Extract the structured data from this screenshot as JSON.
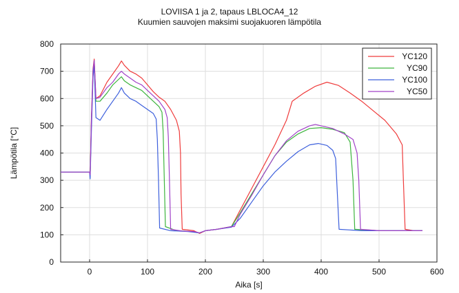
{
  "chart_data": {
    "type": "line",
    "title": "LOVIISA 1 ja 2, tapaus LBLOCA4_12",
    "subtitle": "Kuumien sauvojen maksimi suojakuoren lämpötila",
    "xlabel": "Aika [s]",
    "ylabel": "Lämpötila [°C]",
    "xlim": [
      -50,
      600
    ],
    "ylim": [
      0,
      800
    ],
    "xticks": [
      0,
      100,
      200,
      300,
      400,
      500,
      600
    ],
    "yticks": [
      0,
      100,
      200,
      300,
      400,
      500,
      600,
      700,
      800
    ],
    "grid": true,
    "legend_position": "top-right",
    "series": [
      {
        "name": "YC120",
        "color": "#ef3b3b",
        "points": [
          [
            -50,
            330
          ],
          [
            0,
            330
          ],
          [
            1,
            320
          ],
          [
            3,
            520
          ],
          [
            6,
            710
          ],
          [
            8,
            745
          ],
          [
            11,
            600
          ],
          [
            18,
            610
          ],
          [
            30,
            660
          ],
          [
            40,
            690
          ],
          [
            50,
            720
          ],
          [
            55,
            738
          ],
          [
            60,
            722
          ],
          [
            70,
            700
          ],
          [
            80,
            690
          ],
          [
            90,
            675
          ],
          [
            100,
            650
          ],
          [
            110,
            625
          ],
          [
            120,
            605
          ],
          [
            130,
            590
          ],
          [
            140,
            560
          ],
          [
            150,
            520
          ],
          [
            155,
            480
          ],
          [
            157,
            400
          ],
          [
            158,
            250
          ],
          [
            160,
            120
          ],
          [
            180,
            115
          ],
          [
            190,
            105
          ],
          [
            200,
            115
          ],
          [
            220,
            120
          ],
          [
            245,
            130
          ],
          [
            260,
            190
          ],
          [
            280,
            270
          ],
          [
            300,
            350
          ],
          [
            320,
            430
          ],
          [
            340,
            520
          ],
          [
            350,
            590
          ],
          [
            370,
            620
          ],
          [
            390,
            645
          ],
          [
            410,
            660
          ],
          [
            430,
            648
          ],
          [
            450,
            620
          ],
          [
            470,
            590
          ],
          [
            490,
            555
          ],
          [
            510,
            520
          ],
          [
            530,
            470
          ],
          [
            540,
            430
          ],
          [
            542,
            300
          ],
          [
            545,
            120
          ],
          [
            560,
            115
          ],
          [
            575,
            115
          ]
        ]
      },
      {
        "name": "YC90",
        "color": "#3cb43c",
        "points": [
          [
            -50,
            330
          ],
          [
            0,
            330
          ],
          [
            1,
            320
          ],
          [
            3,
            500
          ],
          [
            6,
            700
          ],
          [
            8,
            735
          ],
          [
            11,
            590
          ],
          [
            18,
            590
          ],
          [
            30,
            620
          ],
          [
            40,
            650
          ],
          [
            50,
            670
          ],
          [
            55,
            680
          ],
          [
            60,
            665
          ],
          [
            70,
            650
          ],
          [
            80,
            640
          ],
          [
            90,
            630
          ],
          [
            100,
            610
          ],
          [
            110,
            590
          ],
          [
            120,
            570
          ],
          [
            125,
            550
          ],
          [
            127,
            480
          ],
          [
            129,
            300
          ],
          [
            131,
            130
          ],
          [
            150,
            115
          ],
          [
            170,
            113
          ],
          [
            190,
            107
          ],
          [
            200,
            115
          ],
          [
            220,
            120
          ],
          [
            245,
            130
          ],
          [
            260,
            180
          ],
          [
            280,
            250
          ],
          [
            300,
            320
          ],
          [
            320,
            390
          ],
          [
            340,
            440
          ],
          [
            360,
            470
          ],
          [
            380,
            490
          ],
          [
            400,
            493
          ],
          [
            420,
            487
          ],
          [
            440,
            475
          ],
          [
            450,
            440
          ],
          [
            455,
            300
          ],
          [
            458,
            120
          ],
          [
            500,
            115
          ],
          [
            575,
            115
          ]
        ]
      },
      {
        "name": "YC100",
        "color": "#3c5fdc",
        "points": [
          [
            -50,
            330
          ],
          [
            0,
            330
          ],
          [
            1,
            305
          ],
          [
            3,
            470
          ],
          [
            6,
            680
          ],
          [
            8,
            720
          ],
          [
            11,
            530
          ],
          [
            18,
            520
          ],
          [
            30,
            560
          ],
          [
            40,
            590
          ],
          [
            50,
            620
          ],
          [
            55,
            640
          ],
          [
            60,
            620
          ],
          [
            70,
            600
          ],
          [
            80,
            590
          ],
          [
            90,
            575
          ],
          [
            100,
            560
          ],
          [
            110,
            545
          ],
          [
            115,
            525
          ],
          [
            117,
            450
          ],
          [
            119,
            300
          ],
          [
            121,
            125
          ],
          [
            140,
            115
          ],
          [
            170,
            112
          ],
          [
            190,
            107
          ],
          [
            200,
            115
          ],
          [
            220,
            120
          ],
          [
            245,
            128
          ],
          [
            260,
            160
          ],
          [
            280,
            220
          ],
          [
            300,
            280
          ],
          [
            320,
            330
          ],
          [
            340,
            370
          ],
          [
            360,
            405
          ],
          [
            380,
            430
          ],
          [
            395,
            435
          ],
          [
            410,
            428
          ],
          [
            420,
            410
          ],
          [
            425,
            380
          ],
          [
            428,
            250
          ],
          [
            431,
            120
          ],
          [
            470,
            115
          ],
          [
            575,
            115
          ]
        ]
      },
      {
        "name": "YC50",
        "color": "#a040c8",
        "points": [
          [
            -50,
            330
          ],
          [
            0,
            330
          ],
          [
            1,
            320
          ],
          [
            3,
            510
          ],
          [
            6,
            705
          ],
          [
            8,
            740
          ],
          [
            11,
            600
          ],
          [
            18,
            605
          ],
          [
            30,
            640
          ],
          [
            40,
            660
          ],
          [
            50,
            690
          ],
          [
            55,
            700
          ],
          [
            60,
            690
          ],
          [
            70,
            675
          ],
          [
            80,
            660
          ],
          [
            90,
            650
          ],
          [
            100,
            630
          ],
          [
            110,
            610
          ],
          [
            120,
            590
          ],
          [
            130,
            560
          ],
          [
            134,
            530
          ],
          [
            136,
            460
          ],
          [
            138,
            300
          ],
          [
            140,
            120
          ],
          [
            160,
            114
          ],
          [
            180,
            112
          ],
          [
            190,
            107
          ],
          [
            200,
            115
          ],
          [
            220,
            120
          ],
          [
            245,
            130
          ],
          [
            250,
            130
          ],
          [
            260,
            175
          ],
          [
            280,
            245
          ],
          [
            300,
            320
          ],
          [
            320,
            390
          ],
          [
            340,
            445
          ],
          [
            360,
            480
          ],
          [
            380,
            500
          ],
          [
            390,
            505
          ],
          [
            400,
            500
          ],
          [
            420,
            490
          ],
          [
            440,
            470
          ],
          [
            455,
            450
          ],
          [
            462,
            400
          ],
          [
            465,
            300
          ],
          [
            468,
            120
          ],
          [
            500,
            115
          ],
          [
            575,
            115
          ]
        ]
      }
    ]
  }
}
